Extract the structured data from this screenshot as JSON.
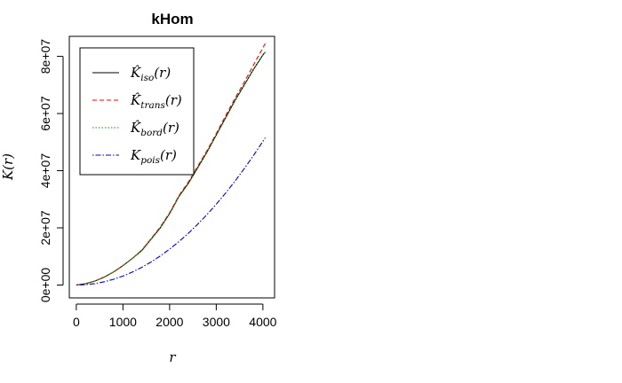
{
  "chart_data": {
    "type": "line",
    "title": "kHom",
    "xlabel": "r",
    "ylabel": "K(r)",
    "xlim": [
      -150,
      4250
    ],
    "ylim": [
      -4500000,
      87000000
    ],
    "x_ticks": [
      0,
      1000,
      2000,
      3000,
      4000
    ],
    "x_tick_labels": [
      "0",
      "1000",
      "2000",
      "3000",
      "4000"
    ],
    "y_ticks": [
      0,
      20000000,
      40000000,
      60000000,
      80000000
    ],
    "y_tick_labels": [
      "0e+00",
      "2e+07",
      "4e+07",
      "6e+07",
      "8e+07"
    ],
    "grid": false,
    "legend_position": "top-left",
    "series": [
      {
        "name": "K̂iso(r)",
        "legend_base": "K̂",
        "legend_sub": "iso",
        "color": "#000000",
        "style": "solid",
        "x": [
          0,
          200,
          400,
          600,
          800,
          1000,
          1200,
          1400,
          1600,
          1800,
          2000,
          2200,
          2400,
          2600,
          2800,
          3000,
          3200,
          3400,
          3600,
          3800,
          4000,
          4050
        ],
        "y": [
          0,
          500000,
          1400000,
          2800000,
          4600000,
          6800000,
          9300000,
          12000000,
          16000000,
          20000000,
          25000000,
          31000000,
          35500000,
          41000000,
          46500000,
          52500000,
          58500000,
          64500000,
          70000000,
          75500000,
          80500000,
          81500000
        ]
      },
      {
        "name": "K̂trans(r)",
        "legend_base": "K̂",
        "legend_sub": "trans",
        "color": "#ff0000",
        "style": "dashed",
        "x": [
          0,
          200,
          400,
          600,
          800,
          1000,
          1200,
          1400,
          1600,
          1800,
          2000,
          2200,
          2400,
          2600,
          2800,
          3000,
          3200,
          3400,
          3600,
          3800,
          4000,
          4050
        ],
        "y": [
          0,
          500000,
          1400000,
          2800000,
          4600000,
          6800000,
          9300000,
          12200000,
          16200000,
          20300000,
          25300000,
          31300000,
          36000000,
          41500000,
          47000000,
          53000000,
          59200000,
          65300000,
          71000000,
          77000000,
          83000000,
          84500000
        ]
      },
      {
        "name": "K̂bord(r)",
        "legend_base": "K̂",
        "legend_sub": "bord",
        "color": "#00a000",
        "style": "dotted",
        "x": [
          0,
          200,
          400,
          600,
          800,
          1000,
          1200,
          1400,
          1600,
          1800,
          2000,
          2200,
          2400,
          2600,
          2800,
          3000,
          3200,
          3400,
          3600,
          3800,
          4000,
          4050
        ],
        "y": [
          0,
          500000,
          1400000,
          2800000,
          4600000,
          6800000,
          9300000,
          12000000,
          16000000,
          20000000,
          25000000,
          31000000,
          35500000,
          41000000,
          46500000,
          52500000,
          58500000,
          64500000,
          70000000,
          75500000,
          80500000,
          81500000
        ]
      },
      {
        "name": "Kpois(r)",
        "legend_base": "K",
        "legend_sub": "pois",
        "color": "#0000cd",
        "style": "dotdash",
        "x": [
          0,
          200,
          400,
          600,
          800,
          1000,
          1200,
          1400,
          1600,
          1800,
          2000,
          2200,
          2400,
          2600,
          2800,
          3000,
          3200,
          3400,
          3600,
          3800,
          4000,
          4050
        ],
        "y": [
          0,
          125664,
          502655,
          1130973,
          2010619,
          3141593,
          4523893,
          6157522,
          8042477,
          10178760,
          12566371,
          15205308,
          18095574,
          21237166,
          24630086,
          28274334,
          32169909,
          36316811,
          40715041,
          45364598,
          50265482,
          51520000
        ]
      }
    ]
  }
}
